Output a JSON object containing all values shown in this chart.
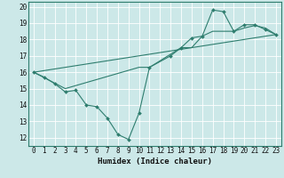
{
  "xlabel": "Humidex (Indice chaleur)",
  "bg_color": "#cce8e8",
  "line_color": "#2e7d6e",
  "grid_color": "#ffffff",
  "xlim": [
    -0.5,
    23.5
  ],
  "ylim": [
    11.5,
    20.3
  ],
  "xticks": [
    0,
    1,
    2,
    3,
    4,
    5,
    6,
    7,
    8,
    9,
    10,
    11,
    12,
    13,
    14,
    15,
    16,
    17,
    18,
    19,
    20,
    21,
    22,
    23
  ],
  "yticks": [
    12,
    13,
    14,
    15,
    16,
    17,
    18,
    19,
    20
  ],
  "line1_x": [
    0,
    1,
    2,
    3,
    4,
    5,
    6,
    7,
    8,
    9,
    10,
    11,
    13,
    14,
    15,
    16,
    17,
    18,
    19,
    20,
    21,
    22,
    23
  ],
  "line1_y": [
    16.0,
    15.7,
    15.3,
    14.8,
    14.9,
    14.0,
    13.9,
    13.2,
    12.2,
    11.9,
    13.5,
    16.3,
    17.0,
    17.5,
    18.1,
    18.2,
    19.8,
    19.7,
    18.5,
    18.9,
    18.9,
    18.6,
    18.3
  ],
  "line2_x": [
    0,
    3,
    10,
    11,
    14,
    15,
    16,
    17,
    18,
    19,
    20,
    21,
    22,
    23
  ],
  "line2_y": [
    16.0,
    15.0,
    16.3,
    16.3,
    17.5,
    17.5,
    18.2,
    18.5,
    18.5,
    18.5,
    18.7,
    18.85,
    18.7,
    18.3
  ],
  "line3_x": [
    0,
    23
  ],
  "line3_y": [
    16.0,
    18.3
  ]
}
